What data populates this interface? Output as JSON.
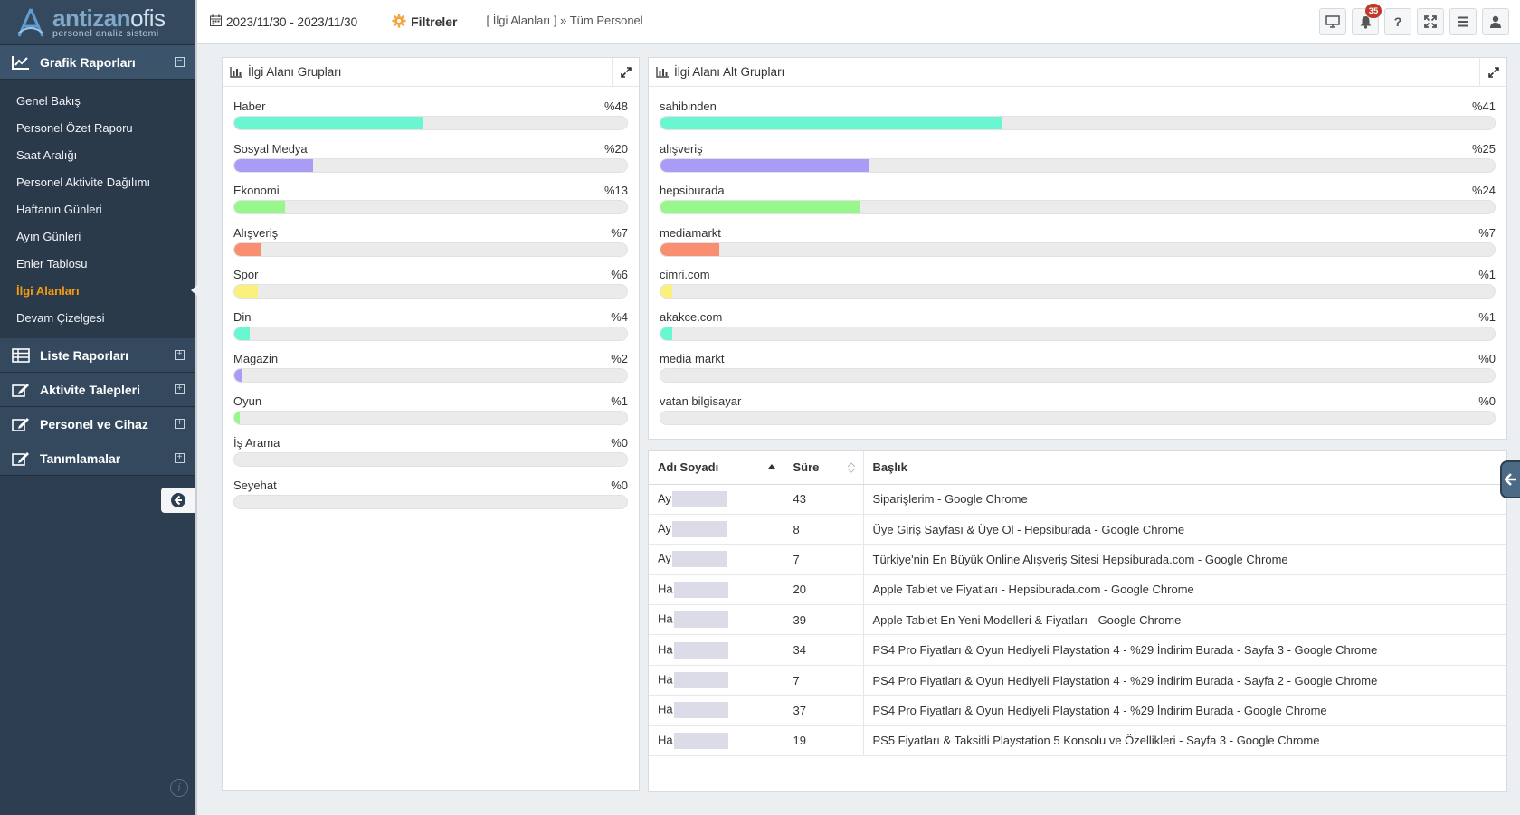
{
  "brand": {
    "name_a": "antizan",
    "name_b": "ofis",
    "subtitle": "personel analiz sistemi"
  },
  "sidebar": {
    "sections": [
      {
        "label": "Grafik Raporları",
        "icon": "line-chart-icon",
        "toggle": "⊟",
        "expanded": true,
        "items": [
          {
            "label": "Genel Bakış"
          },
          {
            "label": "Personel Özet Raporu"
          },
          {
            "label": "Saat Aralığı"
          },
          {
            "label": "Personel Aktivite Dağılımı"
          },
          {
            "label": "Haftanın Günleri"
          },
          {
            "label": "Ayın Günleri"
          },
          {
            "label": "Enler Tablosu"
          },
          {
            "label": "İlgi Alanları",
            "active": true
          },
          {
            "label": "Devam Çizelgesi"
          }
        ]
      },
      {
        "label": "Liste Raporları",
        "icon": "table-icon",
        "toggle": "⊞"
      },
      {
        "label": "Aktivite Talepleri",
        "icon": "edit-icon",
        "toggle": "⊞"
      },
      {
        "label": "Personel ve Cihaz",
        "icon": "edit-icon",
        "toggle": "⊞"
      },
      {
        "label": "Tanımlamalar",
        "icon": "edit-icon",
        "toggle": "⊞"
      }
    ]
  },
  "topbar": {
    "date_range": "2023/11/30 - 2023/11/30",
    "filters_label": "Filtreler",
    "breadcrumb": "[ İlgi Alanları ] » Tüm Personel",
    "notification_count": "35",
    "help_label": "?"
  },
  "colors": {
    "teal": "#69f7d2",
    "purple": "#a99cf7",
    "green": "#98f78a",
    "orange": "#f98e70",
    "yellow": "#f9f17b"
  },
  "panel_left": {
    "title": "İlgi Alanı Grupları",
    "rows": [
      {
        "label": "Haber",
        "pct_text": "%48",
        "value": 48,
        "color": "#69f7d2"
      },
      {
        "label": "Sosyal Medya",
        "pct_text": "%20",
        "value": 20,
        "color": "#a99cf7"
      },
      {
        "label": "Ekonomi",
        "pct_text": "%13",
        "value": 13,
        "color": "#98f78a"
      },
      {
        "label": "Alışveriş",
        "pct_text": "%7",
        "value": 7,
        "color": "#f98e70"
      },
      {
        "label": "Spor",
        "pct_text": "%6",
        "value": 6,
        "color": "#f9f17b"
      },
      {
        "label": "Din",
        "pct_text": "%4",
        "value": 4,
        "color": "#69f7d2"
      },
      {
        "label": "Magazin",
        "pct_text": "%2",
        "value": 2,
        "color": "#a99cf7"
      },
      {
        "label": "Oyun",
        "pct_text": "%1",
        "value": 1,
        "color": "#98f78a"
      },
      {
        "label": "İş Arama",
        "pct_text": "%0",
        "value": 0,
        "color": "#f98e70"
      },
      {
        "label": "Seyehat",
        "pct_text": "%0",
        "value": 0,
        "color": "#f9f17b"
      }
    ]
  },
  "panel_right": {
    "title": "İlgi Alanı Alt Grupları",
    "rows": [
      {
        "label": "sahibinden",
        "pct_text": "%41",
        "value": 41,
        "color": "#69f7d2"
      },
      {
        "label": "alışveriş",
        "pct_text": "%25",
        "value": 25,
        "color": "#a99cf7"
      },
      {
        "label": "hepsiburada",
        "pct_text": "%24",
        "value": 24,
        "color": "#98f78a"
      },
      {
        "label": "mediamarkt",
        "pct_text": "%7",
        "value": 7,
        "color": "#f98e70"
      },
      {
        "label": "cimri.com",
        "pct_text": "%1",
        "value": 1,
        "color": "#f9f17b"
      },
      {
        "label": "akakce.com",
        "pct_text": "%1",
        "value": 1,
        "color": "#69f7d2"
      },
      {
        "label": "media markt",
        "pct_text": "%0",
        "value": 0,
        "color": "#a99cf7"
      },
      {
        "label": "vatan bilgisayar",
        "pct_text": "%0",
        "value": 0,
        "color": "#98f78a"
      }
    ]
  },
  "table": {
    "columns": [
      "Adı Soyadı",
      "Süre",
      "Başlık"
    ],
    "rows": [
      {
        "name_prefix": "Ay",
        "duration": "43",
        "title": "Siparişlerim - Google Chrome"
      },
      {
        "name_prefix": "Ay",
        "duration": "8",
        "title": "Üye Giriş Sayfası & Üye Ol - Hepsiburada - Google Chrome"
      },
      {
        "name_prefix": "Ay",
        "duration": "7",
        "title": "Türkiye'nin En Büyük Online Alışveriş Sitesi Hepsiburada.com - Google Chrome"
      },
      {
        "name_prefix": "Ha",
        "duration": "20",
        "title": "Apple Tablet ve Fiyatları - Hepsiburada.com - Google Chrome"
      },
      {
        "name_prefix": "Ha",
        "duration": "39",
        "title": "Apple Tablet En Yeni Modelleri & Fiyatları - Google Chrome"
      },
      {
        "name_prefix": "Ha",
        "duration": "34",
        "title": "PS4 Pro Fiyatları & Oyun Hediyeli Playstation 4 - %29 İndirim Burada - Sayfa 3 - Google Chrome"
      },
      {
        "name_prefix": "Ha",
        "duration": "7",
        "title": "PS4 Pro Fiyatları & Oyun Hediyeli Playstation 4 - %29 İndirim Burada - Sayfa 2 - Google Chrome"
      },
      {
        "name_prefix": "Ha",
        "duration": "37",
        "title": "PS4 Pro Fiyatları & Oyun Hediyeli Playstation 4 - %29 İndirim Burada - Google Chrome"
      },
      {
        "name_prefix": "Ha",
        "duration": "19",
        "title": "PS5 Fiyatları & Taksitli Playstation 5 Konsolu ve Özellikleri - Sayfa 3 - Google Chrome"
      }
    ]
  }
}
